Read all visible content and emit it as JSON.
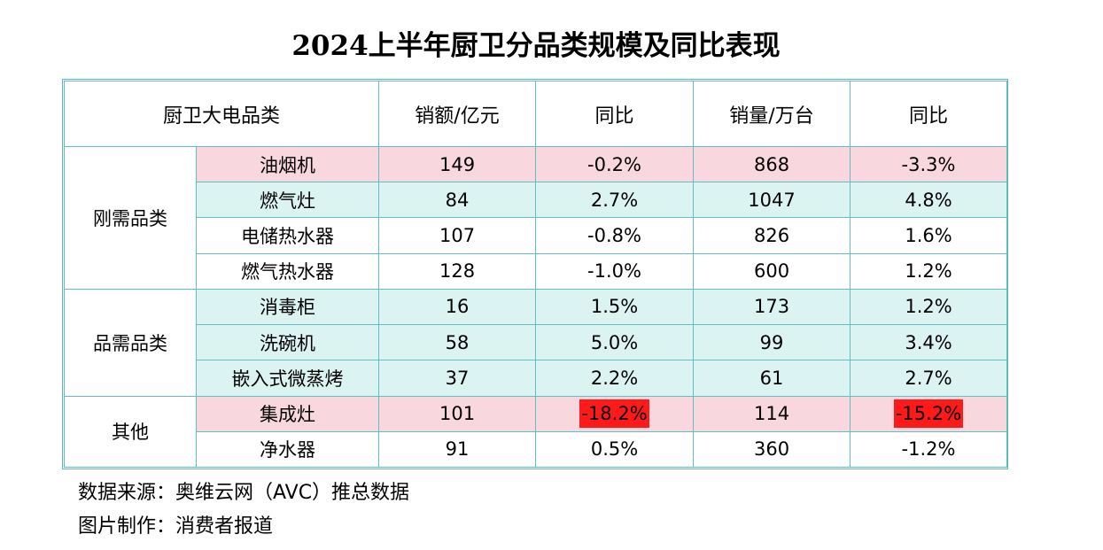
{
  "title": "2024上半年厨卫分品类规模及同比表现",
  "header": {
    "category": "厨卫大电品类",
    "sales": "销额/亿元",
    "sales_yoy": "同比",
    "volume": "销量/万台",
    "volume_yoy": "同比"
  },
  "groups": [
    {
      "name": "刚需品类",
      "span": 4
    },
    {
      "name": "品需品类",
      "span": 3
    },
    {
      "name": "其他",
      "span": 2
    }
  ],
  "rows": [
    {
      "name": "油烟机",
      "sales": "149",
      "sales_yoy": "-0.2%",
      "volume": "868",
      "volume_yoy": "-3.3%",
      "bg": "pink",
      "hl": false
    },
    {
      "name": "燃气灶",
      "sales": "84",
      "sales_yoy": "2.7%",
      "volume": "1047",
      "volume_yoy": "4.8%",
      "bg": "teal",
      "hl": false
    },
    {
      "name": "电储热水器",
      "sales": "107",
      "sales_yoy": "-0.8%",
      "volume": "826",
      "volume_yoy": "1.6%",
      "bg": "white",
      "hl": false
    },
    {
      "name": "燃气热水器",
      "sales": "128",
      "sales_yoy": "-1.0%",
      "volume": "600",
      "volume_yoy": "1.2%",
      "bg": "white",
      "hl": false
    },
    {
      "name": "消毒柜",
      "sales": "16",
      "sales_yoy": "1.5%",
      "volume": "173",
      "volume_yoy": "1.2%",
      "bg": "teal",
      "hl": false
    },
    {
      "name": "洗碗机",
      "sales": "58",
      "sales_yoy": "5.0%",
      "volume": "99",
      "volume_yoy": "3.4%",
      "bg": "teal",
      "hl": false
    },
    {
      "name": "嵌入式微蒸烤",
      "sales": "37",
      "sales_yoy": "2.2%",
      "volume": "61",
      "volume_yoy": "2.7%",
      "bg": "teal",
      "hl": false
    },
    {
      "name": "集成灶",
      "sales": "101",
      "sales_yoy": "-18.2%",
      "volume": "114",
      "volume_yoy": "-15.2%",
      "bg": "pink",
      "hl": true
    },
    {
      "name": "净水器",
      "sales": "91",
      "sales_yoy": "0.5%",
      "volume": "360",
      "volume_yoy": "-1.2%",
      "bg": "white",
      "hl": false
    }
  ],
  "notes": {
    "source": "数据来源：奥维云网（AVC）推总数据",
    "maker": "图片制作：消费者报道"
  },
  "colors": {
    "pink": "#f8d7df",
    "teal": "#dbf3f1",
    "border": "#5fbfc4",
    "highlight": "#ff1a1a"
  },
  "chart_data": {
    "type": "table",
    "title": "2024上半年厨卫分品类规模及同比表现",
    "columns": [
      "厨卫大电品类",
      "销额/亿元",
      "同比",
      "销量/万台",
      "同比"
    ],
    "rows": [
      [
        "刚需品类",
        "油烟机",
        149,
        "-0.2%",
        868,
        "-3.3%"
      ],
      [
        "刚需品类",
        "燃气灶",
        84,
        "2.7%",
        1047,
        "4.8%"
      ],
      [
        "刚需品类",
        "电储热水器",
        107,
        "-0.8%",
        826,
        "1.6%"
      ],
      [
        "刚需品类",
        "燃气热水器",
        128,
        "-1.0%",
        600,
        "1.2%"
      ],
      [
        "品需品类",
        "消毒柜",
        16,
        "1.5%",
        173,
        "1.2%"
      ],
      [
        "品需品类",
        "洗碗机",
        58,
        "5.0%",
        99,
        "3.4%"
      ],
      [
        "品需品类",
        "嵌入式微蒸烤",
        37,
        "2.2%",
        61,
        "2.7%"
      ],
      [
        "其他",
        "集成灶",
        101,
        "-18.2%",
        114,
        "-15.2%"
      ],
      [
        "其他",
        "净水器",
        91,
        "0.5%",
        360,
        "-1.2%"
      ]
    ]
  }
}
